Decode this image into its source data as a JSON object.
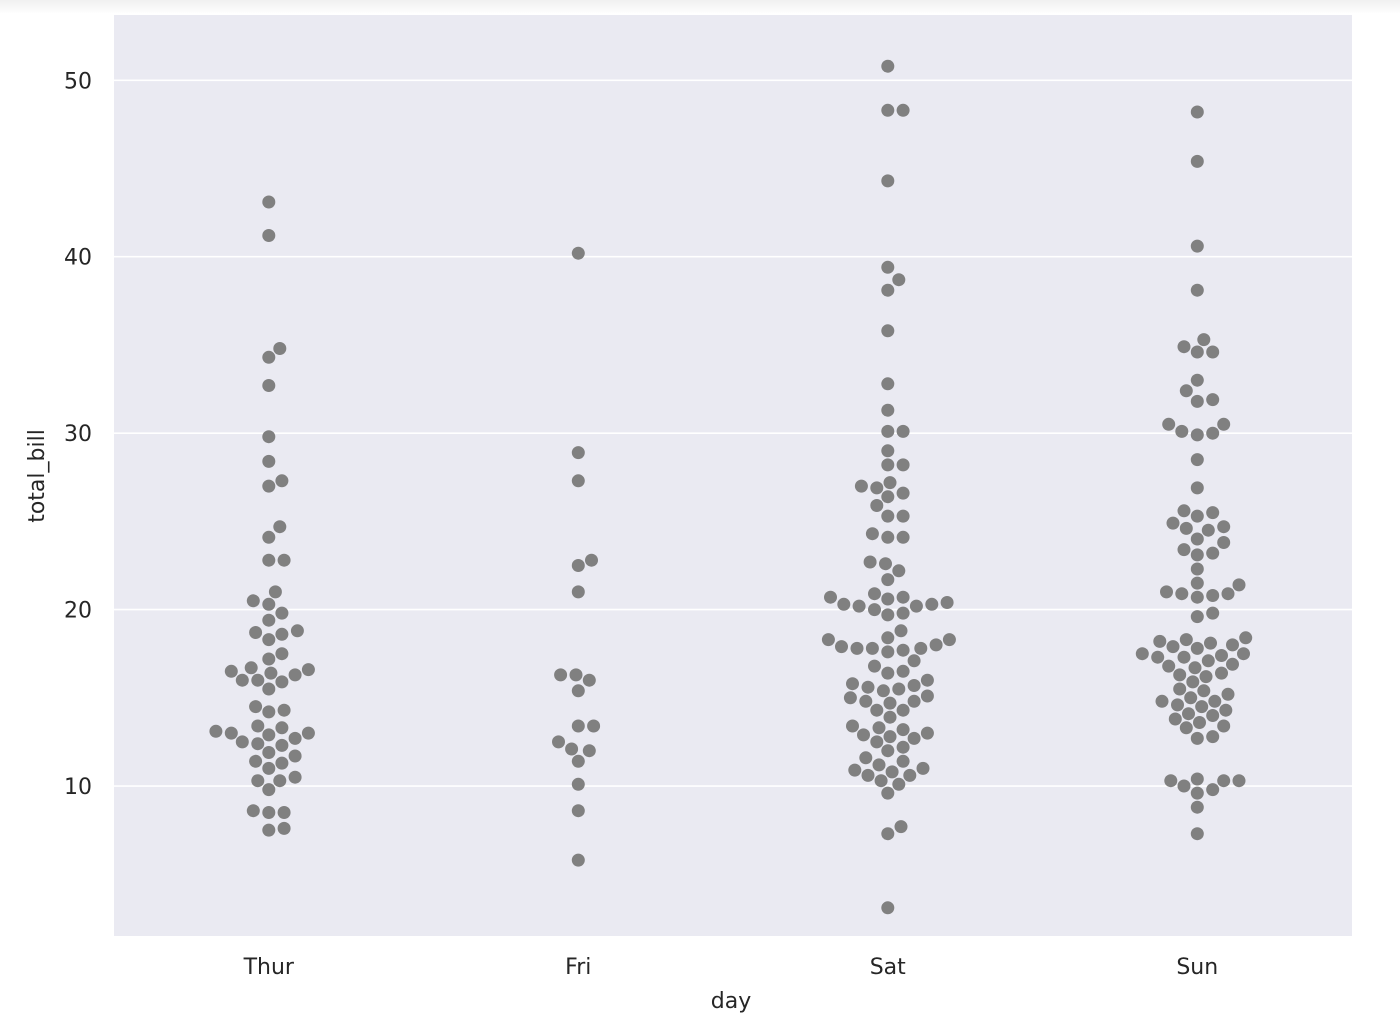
{
  "chart_data": {
    "type": "scatter",
    "subtype": "swarm",
    "title": "",
    "xlabel": "day",
    "ylabel": "total_bill",
    "categories": [
      "Thur",
      "Fri",
      "Sat",
      "Sun"
    ],
    "ylim": [
      1.5,
      53.7
    ],
    "yticks": [
      10,
      20,
      30,
      40,
      50
    ],
    "grid": "horizontal",
    "background": "#EAEAF2",
    "grid_color": "#FFFFFF",
    "marker_color": "#808080",
    "series": [
      {
        "category": "Thur",
        "values": [
          43.1,
          41.2,
          34.8,
          34.3,
          32.7,
          29.8,
          28.4,
          27.3,
          27.0,
          24.7,
          24.1,
          22.8,
          22.8,
          21.0,
          20.5,
          20.3,
          19.8,
          19.4,
          18.8,
          18.7,
          18.6,
          18.3,
          17.5,
          17.2,
          16.7,
          16.6,
          16.5,
          16.4,
          16.3,
          16.0,
          16.0,
          15.9,
          15.5,
          14.5,
          14.3,
          14.2,
          13.4,
          13.3,
          13.1,
          13.0,
          13.0,
          12.9,
          12.7,
          12.5,
          12.4,
          12.3,
          11.9,
          11.7,
          11.4,
          11.3,
          11.0,
          10.5,
          10.3,
          10.3,
          9.8,
          8.6,
          8.5,
          8.5,
          7.6,
          7.5
        ]
      },
      {
        "category": "Fri",
        "values": [
          40.2,
          28.9,
          27.3,
          22.8,
          22.5,
          21.0,
          16.3,
          16.3,
          16.0,
          15.4,
          13.4,
          13.4,
          12.5,
          12.1,
          12.0,
          11.4,
          10.1,
          8.6,
          5.8
        ]
      },
      {
        "category": "Sat",
        "values": [
          50.8,
          48.3,
          48.3,
          44.3,
          39.4,
          38.7,
          38.1,
          35.8,
          32.8,
          31.3,
          30.1,
          30.1,
          29.0,
          28.2,
          28.2,
          27.2,
          27.0,
          26.9,
          26.6,
          26.4,
          25.9,
          25.3,
          25.3,
          24.3,
          24.1,
          24.1,
          22.7,
          22.6,
          22.2,
          21.7,
          20.9,
          20.7,
          20.7,
          20.6,
          20.4,
          20.3,
          20.3,
          20.2,
          20.2,
          20.0,
          19.8,
          19.7,
          18.8,
          18.4,
          18.3,
          18.3,
          18.0,
          17.9,
          17.8,
          17.8,
          17.8,
          17.7,
          17.6,
          17.1,
          16.8,
          16.5,
          16.4,
          16.0,
          15.8,
          15.7,
          15.6,
          15.5,
          15.4,
          15.1,
          15.0,
          14.8,
          14.8,
          14.7,
          14.3,
          14.3,
          13.9,
          13.4,
          13.3,
          13.2,
          13.0,
          12.9,
          12.8,
          12.7,
          12.5,
          12.2,
          12.0,
          11.6,
          11.4,
          11.2,
          11.0,
          10.9,
          10.8,
          10.6,
          10.6,
          10.3,
          10.1,
          9.6,
          7.7,
          7.3,
          3.1
        ]
      },
      {
        "category": "Sun",
        "values": [
          48.2,
          45.4,
          40.6,
          38.1,
          35.3,
          34.9,
          34.6,
          34.6,
          33.0,
          32.4,
          31.9,
          31.8,
          30.5,
          30.5,
          30.1,
          30.0,
          29.9,
          28.5,
          26.9,
          25.6,
          25.5,
          25.3,
          24.9,
          24.7,
          24.6,
          24.5,
          24.0,
          23.8,
          23.4,
          23.2,
          23.1,
          22.3,
          21.5,
          21.4,
          21.0,
          20.9,
          20.9,
          20.8,
          20.7,
          19.8,
          19.6,
          18.4,
          18.3,
          18.2,
          18.1,
          18.0,
          17.9,
          17.8,
          17.5,
          17.5,
          17.4,
          17.3,
          17.3,
          17.1,
          16.9,
          16.8,
          16.7,
          16.4,
          16.3,
          16.2,
          15.9,
          15.5,
          15.4,
          15.2,
          15.0,
          14.8,
          14.8,
          14.6,
          14.5,
          14.3,
          14.1,
          14.0,
          13.8,
          13.6,
          13.4,
          13.3,
          12.8,
          12.7,
          10.4,
          10.3,
          10.3,
          10.3,
          10.0,
          9.8,
          9.6,
          8.8,
          7.3
        ]
      }
    ]
  }
}
